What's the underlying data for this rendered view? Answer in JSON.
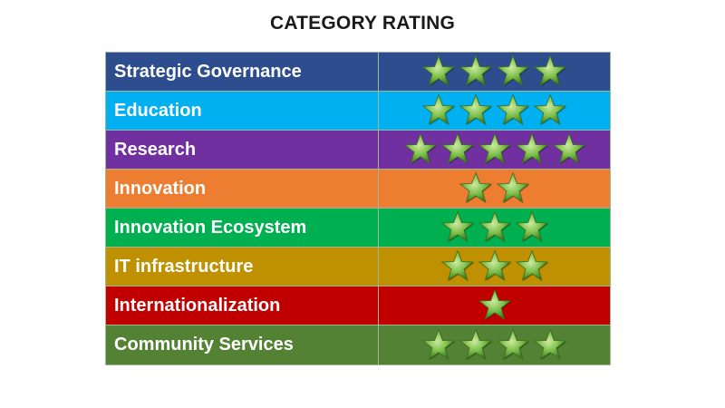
{
  "title": "CATEGORY RATING",
  "star_color": "#7cbf4a",
  "rows": [
    {
      "label": "Strategic Governance",
      "stars": 4,
      "color": "#2e4d8e"
    },
    {
      "label": "Education",
      "stars": 4,
      "color": "#00b0f0"
    },
    {
      "label": "Research",
      "stars": 5,
      "color": "#7030a0"
    },
    {
      "label": "Innovation",
      "stars": 2,
      "color": "#ed7d31"
    },
    {
      "label": "Innovation Ecosystem",
      "stars": 3,
      "color": "#00b050"
    },
    {
      "label": "IT infrastructure",
      "stars": 3,
      "color": "#bf9000"
    },
    {
      "label": "Internationalization",
      "stars": 1,
      "color": "#c00000"
    },
    {
      "label": "Community Services",
      "stars": 4,
      "color": "#548235"
    }
  ]
}
